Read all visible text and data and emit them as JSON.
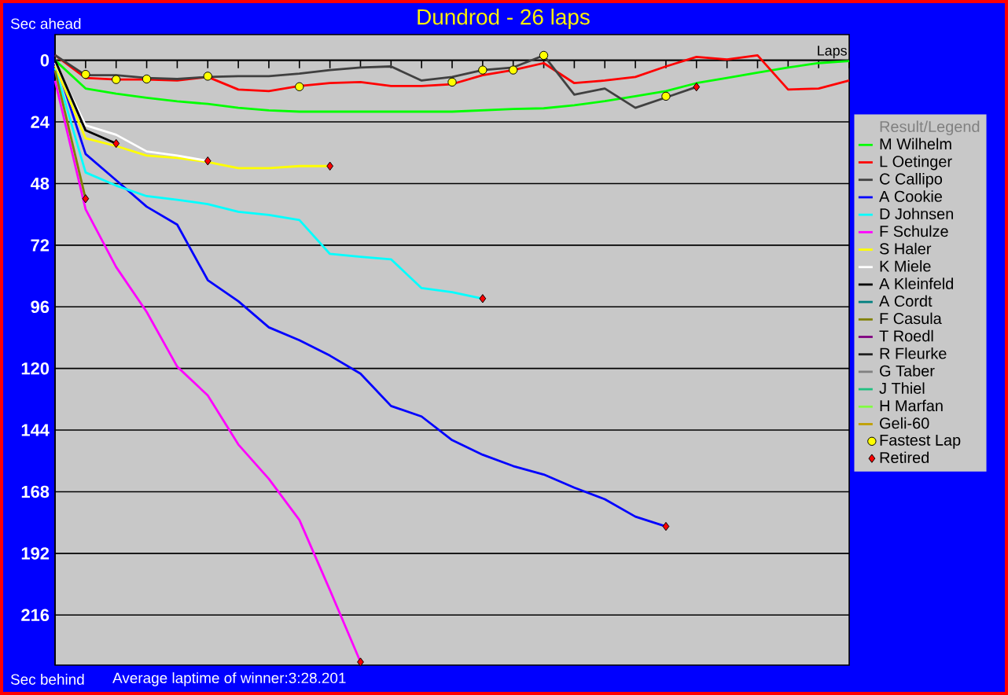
{
  "chart_data": {
    "type": "line",
    "title": "Dundrod - 26 laps",
    "xlabel": "Laps",
    "legend_title": "Result/Legend",
    "annotations": [
      "Sec ahead",
      "Sec behind",
      "Average laptime of winner:3:28.201"
    ],
    "categories": [
      null,
      null,
      null,
      null,
      null,
      null,
      null,
      null,
      null,
      null,
      null,
      null,
      null,
      null,
      null,
      null,
      null,
      null,
      null,
      null,
      null,
      null,
      null,
      null,
      null,
      null,
      null
    ],
    "ylim": [
      235.5,
      -10
    ],
    "yticks": [
      0,
      24,
      48,
      72,
      96,
      120,
      144,
      168,
      192,
      216
    ],
    "grid": "y",
    "legend": "right",
    "tick_labels": "y",
    "series": [
      {
        "name": "M Wilhelm",
        "color": "#00ff00",
        "values": [
          0,
          11,
          13,
          14.6,
          16,
          17,
          18.5,
          19.5,
          20,
          20,
          20,
          20,
          20,
          20,
          19.5,
          19,
          18.7,
          17.5,
          15.9,
          14,
          12,
          8.9,
          6.9,
          4.8,
          2.8,
          1.1,
          0.3
        ]
      },
      {
        "name": "L Oetinger",
        "color": "#ff0000",
        "values": [
          -2,
          6.9,
          7.5,
          7.5,
          7.9,
          6.5,
          11.4,
          12,
          10,
          8.9,
          8.5,
          10,
          10,
          9.3,
          5.8,
          3.8,
          1.1,
          8.9,
          7.9,
          6.5,
          2.4,
          -1.3,
          -0.3,
          -1.9,
          11.4,
          11,
          7.9
        ]
      },
      {
        "name": "C Callipo",
        "color": "#404040",
        "values": [
          -2,
          5.8,
          5.8,
          6.9,
          7.3,
          6.5,
          6.2,
          6.2,
          5.2,
          3.8,
          2.8,
          2.4,
          7.9,
          6.5,
          3.8,
          2.8,
          -1.9,
          13.4,
          11,
          18.5,
          14.5,
          10.4,
          null,
          null,
          null,
          null,
          null
        ]
      },
      {
        "name": "A Cookie",
        "color": "#0000ff",
        "values": [
          0,
          36.5,
          46.7,
          57,
          64,
          85.6,
          93.8,
          104,
          109,
          115,
          122,
          134.6,
          138.7,
          147.9,
          153.6,
          158,
          161.3,
          166.4,
          170.9,
          177.7,
          181.5,
          null,
          null,
          null,
          null,
          null,
          null
        ]
      },
      {
        "name": "D Johnsen",
        "color": "#00ffff",
        "values": [
          3,
          43.7,
          48.8,
          52.9,
          54.3,
          56,
          59,
          60.2,
          62.2,
          75.4,
          76.5,
          77.5,
          88.7,
          90.3,
          92.8,
          null,
          null,
          null,
          null,
          null,
          null,
          null,
          null,
          null,
          null,
          null,
          null
        ]
      },
      {
        "name": "F Schulze",
        "color": "#ff00ff",
        "values": [
          8,
          58,
          80.5,
          98,
          119.3,
          130.5,
          149.6,
          163,
          179,
          206.3,
          234.3,
          null,
          null,
          null,
          null,
          null,
          null,
          null,
          null,
          null,
          null,
          null,
          null,
          null,
          null,
          null,
          null
        ]
      },
      {
        "name": "S Haler",
        "color": "#ffff00",
        "values": [
          2,
          30.4,
          33.4,
          37.1,
          38,
          39.6,
          42,
          42,
          41.2,
          41.2,
          null,
          null,
          null,
          null,
          null,
          null,
          null,
          null,
          null,
          null,
          null,
          null,
          null,
          null,
          null,
          null,
          null
        ]
      },
      {
        "name": "K Miele",
        "color": "#ffffff",
        "values": [
          1,
          25.3,
          29,
          35.5,
          37.1,
          39.2,
          null,
          null,
          null,
          null,
          null,
          null,
          null,
          null,
          null,
          null,
          null,
          null,
          null,
          null,
          null,
          null,
          null,
          null,
          null,
          null,
          null
        ]
      },
      {
        "name": "A Kleinfeld",
        "color": "#000000",
        "values": [
          0,
          27.3,
          32.4,
          null,
          null,
          null,
          null,
          null,
          null,
          null,
          null,
          null,
          null,
          null,
          null,
          null,
          null,
          null,
          null,
          null,
          null,
          null,
          null,
          null,
          null,
          null,
          null
        ]
      },
      {
        "name": "A Cordt",
        "color": "#008080",
        "values": [
          null,
          null,
          null,
          null,
          null,
          null,
          null,
          null,
          null,
          null,
          null,
          null,
          null,
          null,
          null,
          null,
          null,
          null,
          null,
          null,
          null,
          null,
          null,
          null,
          null,
          null,
          null
        ]
      },
      {
        "name": "F Casula",
        "color": "#808000",
        "values": [
          4,
          53.9,
          null,
          null,
          null,
          null,
          null,
          null,
          null,
          null,
          null,
          null,
          null,
          null,
          null,
          null,
          null,
          null,
          null,
          null,
          null,
          null,
          null,
          null,
          null,
          null,
          null
        ]
      },
      {
        "name": "T Roedl",
        "color": "#800080",
        "values": [
          null,
          null,
          null,
          null,
          null,
          null,
          null,
          null,
          null,
          null,
          null,
          null,
          null,
          null,
          null,
          null,
          null,
          null,
          null,
          null,
          null,
          null,
          null,
          null,
          null,
          null,
          null
        ]
      },
      {
        "name": "R Fleurke",
        "color": "#202020",
        "values": [
          null,
          null,
          null,
          null,
          null,
          null,
          null,
          null,
          null,
          null,
          null,
          null,
          null,
          null,
          null,
          null,
          null,
          null,
          null,
          null,
          null,
          null,
          null,
          null,
          null,
          null,
          null
        ]
      },
      {
        "name": "G Taber",
        "color": "#808080",
        "values": [
          null,
          null,
          null,
          null,
          null,
          null,
          null,
          null,
          null,
          null,
          null,
          null,
          null,
          null,
          null,
          null,
          null,
          null,
          null,
          null,
          null,
          null,
          null,
          null,
          null,
          null,
          null
        ]
      },
      {
        "name": "J Thiel",
        "color": "#20c080",
        "values": [
          null,
          null,
          null,
          null,
          null,
          null,
          null,
          null,
          null,
          null,
          null,
          null,
          null,
          null,
          null,
          null,
          null,
          null,
          null,
          null,
          null,
          null,
          null,
          null,
          null,
          null,
          null
        ]
      },
      {
        "name": "H Marfan",
        "color": "#80ff40",
        "values": [
          null,
          null,
          null,
          null,
          null,
          null,
          null,
          null,
          null,
          null,
          null,
          null,
          null,
          null,
          null,
          null,
          null,
          null,
          null,
          null,
          null,
          null,
          null,
          null,
          null,
          null,
          null
        ]
      },
      {
        "name": "Geli-60",
        "color": "#c0a000",
        "values": [
          null,
          null,
          null,
          null,
          null,
          null,
          null,
          null,
          null,
          null,
          null,
          null,
          null,
          null,
          null,
          null,
          null,
          null,
          null,
          null,
          null,
          null,
          null,
          null,
          null,
          null,
          null
        ]
      },
      {
        "name": "Fastest Lap",
        "type": "scatter",
        "marker": "circle",
        "color": "#ffff00",
        "values": [
          null,
          5.5,
          7.5,
          7.3,
          null,
          6.2,
          null,
          null,
          10.3,
          null,
          null,
          null,
          null,
          8.5,
          3.8,
          3.8,
          -1.9,
          null,
          null,
          null,
          14,
          null,
          null,
          null,
          null,
          null,
          null
        ]
      },
      {
        "name": "Retired",
        "type": "scatter",
        "marker": "diamond",
        "color": "#ff0000",
        "values": [
          null,
          53.9,
          32.4,
          null,
          null,
          39.2,
          null,
          null,
          null,
          41.2,
          234.3,
          null,
          null,
          null,
          92.8,
          null,
          null,
          null,
          null,
          null,
          181.5,
          10.4,
          null,
          null,
          null,
          null,
          null
        ]
      }
    ]
  }
}
